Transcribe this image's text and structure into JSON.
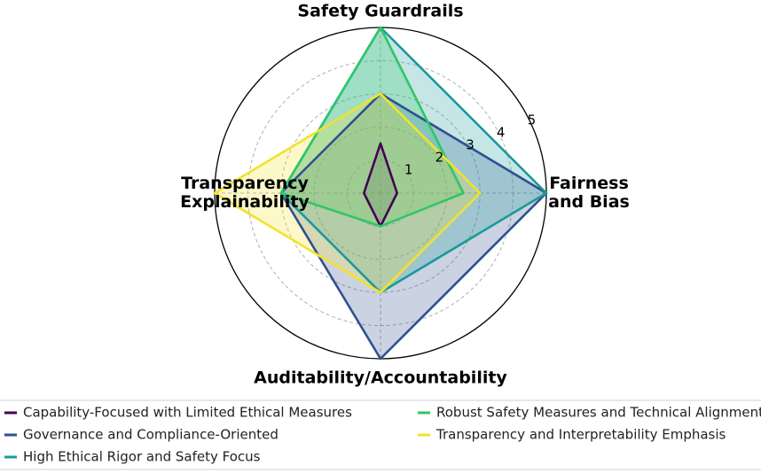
{
  "chart_data": {
    "type": "radar",
    "axes": [
      {
        "label_lines": [
          "Safety Guardrails"
        ]
      },
      {
        "label_lines": [
          "Fairness",
          "and Bias"
        ]
      },
      {
        "label_lines": [
          "Auditability/Accountability"
        ]
      },
      {
        "label_lines": [
          "Transparency",
          "Explainability"
        ]
      }
    ],
    "rlim": [
      0,
      5
    ],
    "ticks": [
      "1",
      "2",
      "3",
      "4",
      "5"
    ],
    "tick_values": [
      1,
      2,
      3,
      4,
      5
    ],
    "grid": true,
    "legend_position": "bottom",
    "series": [
      {
        "name": "Capability-Focused with Limited Ethical Measures",
        "values": [
          1.5,
          0.5,
          1.0,
          0.5
        ],
        "color": "#440154"
      },
      {
        "name": "Governance and Compliance-Oriented",
        "values": [
          3.0,
          5.0,
          5.0,
          3.0
        ],
        "color": "#31508f"
      },
      {
        "name": "High Ethical Rigor and Safety Focus",
        "values": [
          5.0,
          5.0,
          3.0,
          3.0
        ],
        "color": "#1a9a9a"
      },
      {
        "name": "Robust Safety Measures and Technical Alignment",
        "values": [
          5.0,
          2.5,
          1.0,
          3.0
        ],
        "color": "#2ec766"
      },
      {
        "name": "Transparency and Interpretability Emphasis",
        "values": [
          3.0,
          3.0,
          3.0,
          5.0
        ],
        "color": "#f2e22c"
      }
    ]
  }
}
